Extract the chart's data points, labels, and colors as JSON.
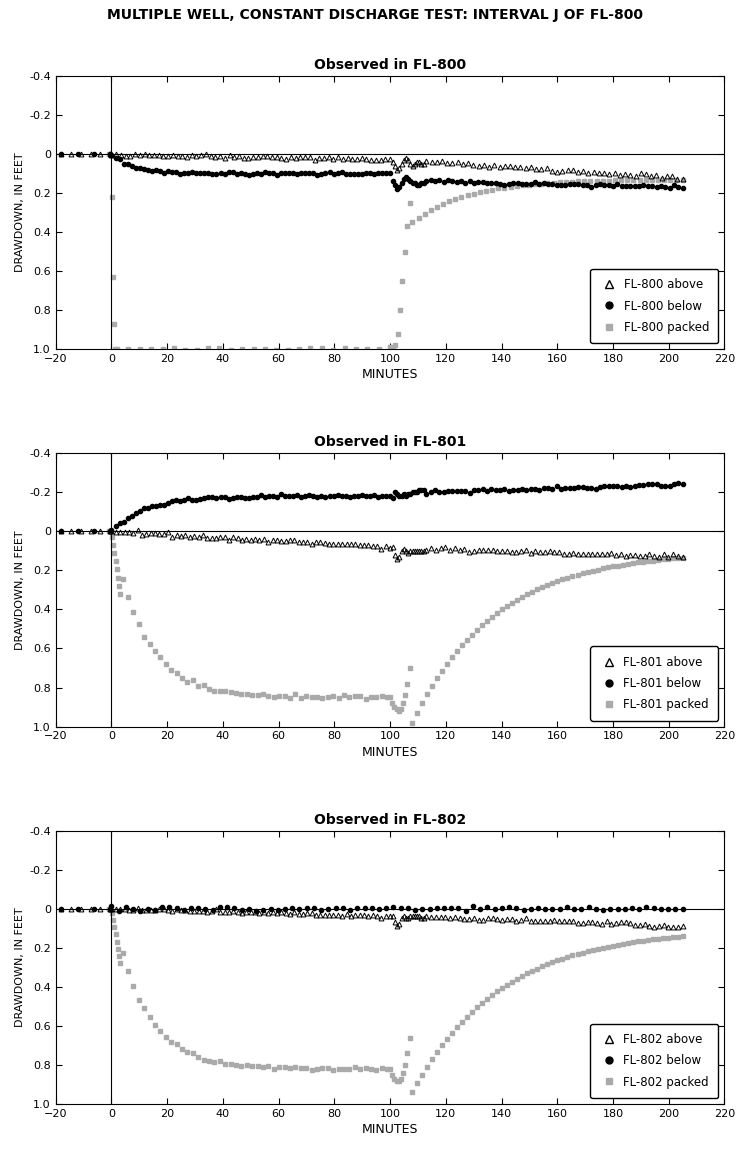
{
  "title": "MULTIPLE WELL, CONSTANT DISCHARGE TEST: INTERVAL J OF FL-800",
  "subplot_titles": [
    "Observed in FL-800",
    "Observed in FL-801",
    "Observed in FL-802"
  ],
  "xlabel": "MINUTES",
  "ylabel": "DRAWDOWN, IN FEET",
  "xlim": [
    -20,
    220
  ],
  "ylim_inv": [
    1.0,
    -0.4
  ],
  "xticks": [
    -20,
    0,
    20,
    40,
    60,
    80,
    100,
    120,
    140,
    160,
    180,
    200,
    220
  ],
  "yticks": [
    -0.4,
    -0.2,
    0.0,
    0.2,
    0.4,
    0.6,
    0.8,
    1.0
  ],
  "color_above": "#000000",
  "color_below": "#000000",
  "color_packed": "#aaaaaa",
  "legend_labels": [
    [
      "FL-800 above",
      "FL-800 below",
      "FL-800 packed"
    ],
    [
      "FL-801 above",
      "FL-801 below",
      "FL-801 packed"
    ],
    [
      "FL-802 above",
      "FL-802 below",
      "FL-802 packed"
    ]
  ]
}
